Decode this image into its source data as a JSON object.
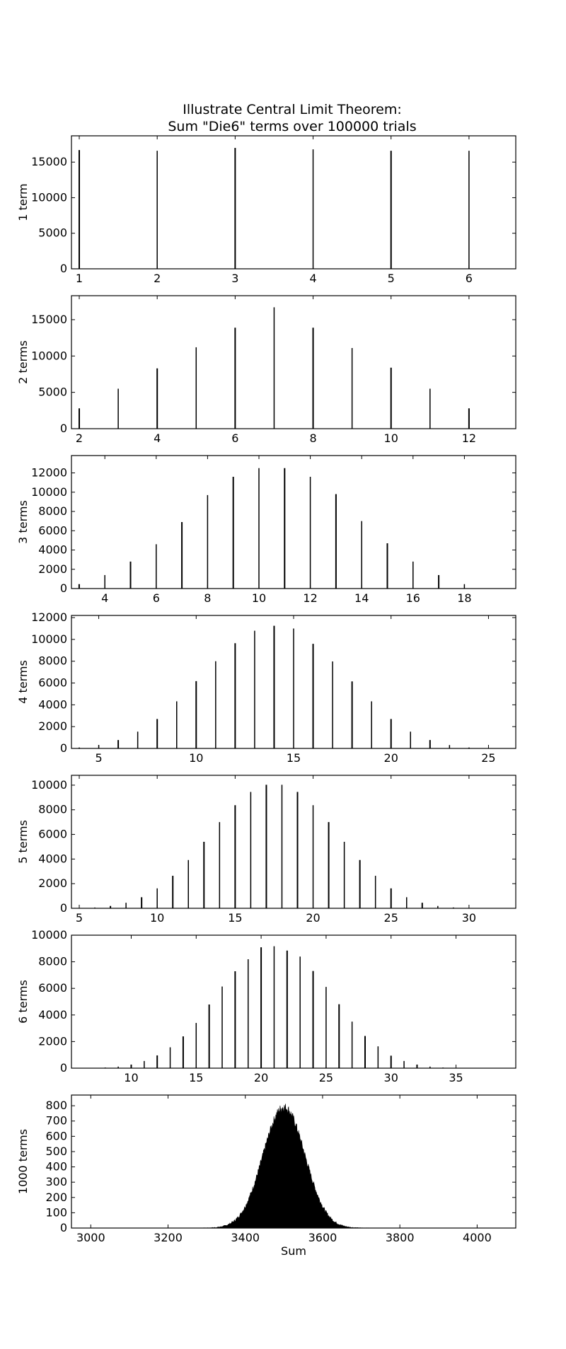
{
  "chart_data": [
    {
      "type": "bar",
      "title_lines": [
        "Illustrate Central Limit Theorem:",
        "Sum \"Die6\" terms over 100000 trials"
      ],
      "ylabel": "1 term",
      "xlabel": "",
      "xlim": [
        0.9,
        6.6
      ],
      "ylim": [
        0,
        18700
      ],
      "xticks": [
        1,
        2,
        3,
        4,
        5,
        6
      ],
      "yticks": [
        0,
        5000,
        10000,
        15000
      ],
      "x": [
        1,
        2,
        3,
        4,
        5,
        6
      ],
      "values": [
        16700,
        16600,
        17000,
        16800,
        16600,
        16600
      ]
    },
    {
      "type": "bar",
      "ylabel": "2 terms",
      "xlabel": "",
      "xlim": [
        1.8,
        13.2
      ],
      "ylim": [
        0,
        18300
      ],
      "xticks": [
        2,
        4,
        6,
        8,
        10,
        12
      ],
      "yticks": [
        0,
        5000,
        10000,
        15000
      ],
      "x": [
        2,
        3,
        4,
        5,
        6,
        7,
        8,
        9,
        10,
        11,
        12
      ],
      "values": [
        2800,
        5500,
        8300,
        11200,
        13900,
        16700,
        13900,
        11100,
        8400,
        5500,
        2800
      ]
    },
    {
      "type": "bar",
      "ylabel": "3 terms",
      "xlabel": "",
      "xlim": [
        2.7,
        20.0
      ],
      "ylim": [
        0,
        13800
      ],
      "xticks": [
        4,
        6,
        8,
        10,
        12,
        14,
        16,
        18
      ],
      "yticks": [
        0,
        2000,
        4000,
        6000,
        8000,
        10000,
        12000
      ],
      "x": [
        3,
        4,
        5,
        6,
        7,
        8,
        9,
        10,
        11,
        12,
        13,
        14,
        15,
        16,
        17,
        18
      ],
      "values": [
        460,
        1400,
        2800,
        4600,
        6900,
        9700,
        11600,
        12500,
        12500,
        11600,
        9800,
        7000,
        4700,
        2800,
        1400,
        460
      ]
    },
    {
      "type": "bar",
      "ylabel": "4 terms",
      "xlabel": "",
      "xlim": [
        3.6,
        26.4
      ],
      "ylim": [
        0,
        12200
      ],
      "xticks": [
        5,
        10,
        15,
        20,
        25
      ],
      "yticks": [
        0,
        2000,
        4000,
        6000,
        8000,
        10000,
        12000
      ],
      "x": [
        4,
        5,
        6,
        7,
        8,
        9,
        10,
        11,
        12,
        13,
        14,
        15,
        16,
        17,
        18,
        19,
        20,
        21,
        22,
        23,
        24
      ],
      "values": [
        80,
        310,
        770,
        1540,
        2700,
        4320,
        6170,
        8000,
        9650,
        10800,
        11250,
        11000,
        9600,
        7980,
        6150,
        4320,
        2700,
        1540,
        770,
        310,
        80
      ]
    },
    {
      "type": "bar",
      "ylabel": "5 terms",
      "xlabel": "",
      "xlim": [
        4.5,
        33.0
      ],
      "ylim": [
        0,
        10800
      ],
      "xticks": [
        5,
        10,
        15,
        20,
        25,
        30
      ],
      "yticks": [
        0,
        2000,
        4000,
        6000,
        8000,
        10000
      ],
      "x": [
        5,
        6,
        7,
        8,
        9,
        10,
        11,
        12,
        13,
        14,
        15,
        16,
        17,
        18,
        19,
        20,
        21,
        22,
        23,
        24,
        25,
        26,
        27,
        28,
        29,
        30
      ],
      "values": [
        13,
        64,
        190,
        450,
        900,
        1620,
        2640,
        3920,
        5400,
        7000,
        8370,
        9450,
        10030,
        10030,
        9450,
        8370,
        7000,
        5400,
        3920,
        2640,
        1620,
        900,
        450,
        190,
        64,
        13
      ]
    },
    {
      "type": "bar",
      "ylabel": "6 terms",
      "xlabel": "",
      "xlim": [
        5.4,
        39.6
      ],
      "ylim": [
        0,
        10000
      ],
      "xticks": [
        10,
        15,
        20,
        25,
        30,
        35
      ],
      "yticks": [
        0,
        2000,
        4000,
        6000,
        8000,
        10000
      ],
      "x": [
        6,
        7,
        8,
        9,
        10,
        11,
        12,
        13,
        14,
        15,
        16,
        17,
        18,
        19,
        20,
        21,
        22,
        23,
        24,
        25,
        26,
        27,
        28,
        29,
        30,
        31,
        32,
        33,
        34,
        35,
        36
      ],
      "values": [
        2,
        13,
        45,
        120,
        270,
        540,
        960,
        1570,
        2390,
        3400,
        4790,
        6140,
        7290,
        8190,
        9090,
        9170,
        8840,
        8390,
        7310,
        6110,
        4810,
        3500,
        2420,
        1640,
        940,
        540,
        270,
        120,
        45,
        13,
        2
      ]
    },
    {
      "type": "area",
      "ylabel": "1000 terms",
      "xlabel": "Sum",
      "xlim": [
        2950,
        4100
      ],
      "ylim": [
        0,
        870
      ],
      "xticks": [
        3000,
        3200,
        3400,
        3600,
        3800,
        4000
      ],
      "yticks": [
        0,
        100,
        200,
        300,
        400,
        500,
        600,
        700,
        800
      ],
      "distribution": {
        "peak_x": 3500,
        "peak_count": 790,
        "spread_sd": 54,
        "support": [
          3270,
          3730
        ]
      }
    }
  ]
}
